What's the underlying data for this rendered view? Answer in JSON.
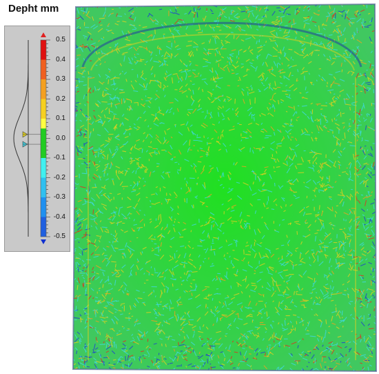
{
  "legend": {
    "title": "Depht mm",
    "ticks": [
      "0.5",
      "0.4",
      "0.3",
      "0.2",
      "0.1",
      "0.0",
      "-0.1",
      "-0.2",
      "-0.3",
      "-0.4",
      "-0.5"
    ],
    "scale_range": [
      -0.5,
      0.5
    ],
    "color_stops": [
      {
        "value": 0.5,
        "color": "#e01010"
      },
      {
        "value": 0.4,
        "color": "#f06020"
      },
      {
        "value": 0.3,
        "color": "#f4a020"
      },
      {
        "value": 0.2,
        "color": "#f6d020"
      },
      {
        "value": 0.1,
        "color": "#ffff40"
      },
      {
        "value": 0.0,
        "color": "#22cc22"
      },
      {
        "value": -0.1,
        "color": "#40f0f0"
      },
      {
        "value": -0.2,
        "color": "#30c0f0"
      },
      {
        "value": -0.3,
        "color": "#2090f0"
      },
      {
        "value": -0.4,
        "color": "#2060e0"
      },
      {
        "value": -0.5,
        "color": "#1020d0"
      }
    ],
    "top_arrow_color": "#e02020",
    "bottom_arrow_color": "#1030d0"
  },
  "scan": {
    "dominant_color": "#22cc22",
    "noise_colors": [
      "#e0d020",
      "#40d8e0",
      "#f0a020",
      "#2040d0",
      "#e03020"
    ]
  }
}
